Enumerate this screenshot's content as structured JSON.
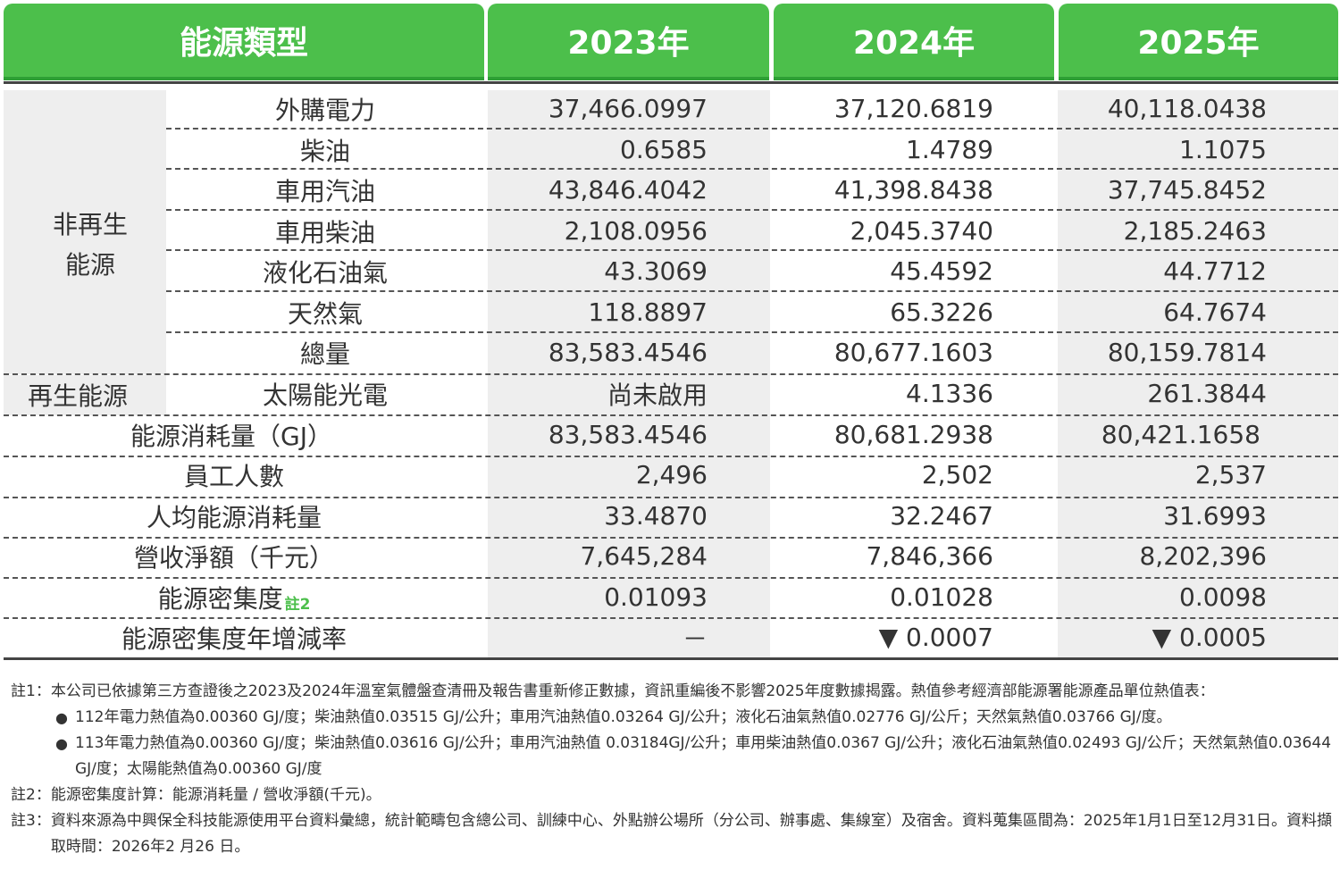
{
  "header": {
    "energy_type": "能源類型",
    "years": [
      "2023年",
      "2024年",
      "2025年"
    ]
  },
  "groups": {
    "non_renewable": "非再生\n能源",
    "non_renewable_line1": "非再生",
    "non_renewable_line2": "能源",
    "renewable": "再生能源"
  },
  "rows": [
    {
      "label": "外購電力",
      "values": [
        "37,466.0997",
        "37,120.6819",
        "40,118.0438"
      ]
    },
    {
      "label": "柴油",
      "values": [
        "0.6585",
        "1.4789",
        "1.1075"
      ]
    },
    {
      "label": "車用汽油",
      "values": [
        "43,846.4042",
        "41,398.8438",
        "37,745.8452"
      ]
    },
    {
      "label": "車用柴油",
      "values": [
        "2,108.0956",
        "2,045.3740",
        "2,185.2463"
      ]
    },
    {
      "label": "液化石油氣",
      "values": [
        "43.3069",
        "45.4592",
        "44.7712"
      ]
    },
    {
      "label": "天然氣",
      "values": [
        "118.8897",
        "65.3226",
        "64.7674"
      ]
    },
    {
      "label": "總量",
      "values": [
        "83,583.4546",
        "80,677.1603",
        "80,159.7814"
      ]
    },
    {
      "label": "太陽能光電",
      "values": [
        "尚未啟用",
        "4.1336",
        "261.3844"
      ]
    },
    {
      "label": "能源消耗量（GJ）",
      "values": [
        "83,583.4546",
        "80,681.2938",
        "80,421.1658"
      ]
    },
    {
      "label": "員工人數",
      "values": [
        "2,496",
        "2,502",
        "2,537"
      ]
    },
    {
      "label": "人均能源消耗量",
      "values": [
        "33.4870",
        "32.2467",
        "31.6993"
      ]
    },
    {
      "label": "營收淨額（千元）",
      "values": [
        "7,645,284",
        "7,846,366",
        "8,202,396"
      ]
    },
    {
      "label": "能源密集度",
      "sup": "註2",
      "values": [
        "0.01093",
        "0.01028",
        "0.0098"
      ]
    },
    {
      "label": "能源密集度年增減率",
      "values": [
        "－",
        "▼ 0.0007",
        "▼ 0.0005"
      ]
    }
  ],
  "notes": {
    "n1_key": "註1：",
    "n1_text": "本公司已依據第三方查證後之2023及2024年溫室氣體盤查清冊及報告書重新修正數據，資訊重編後不影響2025年度數據揭露。熱值參考經濟部能源署能源產品單位熱值表：",
    "bullet": "●",
    "b1": "112年電力熱值為0.00360 GJ/度；柴油熱值0.03515 GJ/公升；車用汽油熱值0.03264 GJ/公升；液化石油氣熱值0.02776 GJ/公斤；天然氣熱值0.03766 GJ/度。",
    "b2": "113年電力熱值為0.00360 GJ/度；柴油熱值0.03616 GJ/公升；車用汽油熱值 0.03184GJ/公升；車用柴油熱值0.0367 GJ/公升；液化石油氣熱值0.02493 GJ/公斤；天然氣熱值0.03644 GJ/度；太陽能熱值為0.00360 GJ/度",
    "n2_key": "註2：",
    "n2_text": "能源密集度計算：能源消耗量 / 營收淨額(千元)。",
    "n3_key": "註3：",
    "n3_text": "資料來源為中興保全科技能源使用平台資料彙總，統計範疇包含總公司、訓練中心、外點辦公場所（分公司、辦事處、集線室）及宿舍。資料蒐集區間為：2025年1月1日至12月31日。資料擷取時間：2026年2 月26 日。"
  },
  "colors": {
    "header_green": "#4cbf4b",
    "shade": "#eeeeee",
    "text": "#333333"
  }
}
